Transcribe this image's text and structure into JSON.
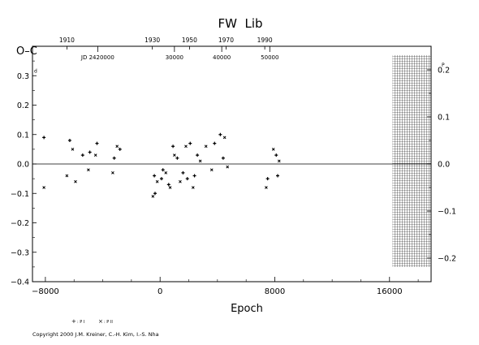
{
  "chart_data": {
    "type": "scatter",
    "title": "FW  Lib",
    "ylabel": "O–C",
    "ylabel_sup": "d",
    "xlabel": "Epoch",
    "xlim": [
      -8900,
      18900
    ],
    "ylim": [
      -0.4,
      0.4
    ],
    "x_ticks": [
      -8000,
      0,
      8000,
      16000
    ],
    "x_tick_labels": [
      "−8000",
      "0",
      "8000",
      "16000"
    ],
    "y_ticks": [
      -0.4,
      -0.3,
      -0.2,
      -0.1,
      0.0,
      0.1,
      0.2,
      0.3
    ],
    "y_tick_labels": [
      "−0.4",
      "−0.3",
      "−0.2",
      "−0.1",
      "0.0",
      "0.1",
      "0.2",
      "0.3"
    ],
    "right_ylim": [
      -0.25,
      0.25
    ],
    "right_y_ticks": [
      -0.2,
      -0.1,
      0.0,
      0.1,
      0.2
    ],
    "right_y_tick_labels": [
      "−0.2",
      "−0.1",
      "0.0",
      "0.1",
      "0.2"
    ],
    "right_ylabel_sup": "P",
    "top_year_ticks": [
      {
        "epoch": -6500,
        "label": "1910"
      },
      {
        "epoch": -540,
        "label": "1930"
      },
      {
        "epoch": 2050,
        "label": "1950"
      },
      {
        "epoch": 4600,
        "label": "1970"
      },
      {
        "epoch": 7300,
        "label": "1990"
      }
    ],
    "top_jd_ticks": [
      {
        "epoch": -4350,
        "label": "JD 2420000"
      },
      {
        "epoch": 1000,
        "label": "30000"
      },
      {
        "epoch": 4300,
        "label": "40000"
      },
      {
        "epoch": 7650,
        "label": "50000"
      }
    ],
    "hatched_region": [
      16200,
      18900
    ],
    "series": [
      {
        "name": "P I",
        "marker": "+",
        "points": [
          [
            -8100,
            0.09
          ],
          [
            -6300,
            0.08
          ],
          [
            -5400,
            0.03
          ],
          [
            -4900,
            0.04
          ],
          [
            -4400,
            0.07
          ],
          [
            -3200,
            0.02
          ],
          [
            -2800,
            0.05
          ],
          [
            -400,
            -0.04
          ],
          [
            -350,
            -0.1
          ],
          [
            100,
            -0.05
          ],
          [
            200,
            -0.02
          ],
          [
            600,
            -0.07
          ],
          [
            900,
            0.06
          ],
          [
            1200,
            0.02
          ],
          [
            1600,
            -0.03
          ],
          [
            1900,
            -0.05
          ],
          [
            2100,
            0.07
          ],
          [
            2400,
            -0.04
          ],
          [
            2600,
            0.03
          ],
          [
            3800,
            0.07
          ],
          [
            4200,
            0.1
          ],
          [
            4400,
            0.02
          ],
          [
            7500,
            -0.05
          ],
          [
            8100,
            0.03
          ],
          [
            8200,
            -0.04
          ]
        ]
      },
      {
        "name": "P II",
        "marker": "×",
        "points": [
          [
            -8100,
            -0.08
          ],
          [
            -6500,
            -0.04
          ],
          [
            -6100,
            0.05
          ],
          [
            -5900,
            -0.06
          ],
          [
            -5000,
            -0.02
          ],
          [
            -4500,
            0.03
          ],
          [
            -3300,
            -0.03
          ],
          [
            -3000,
            0.06
          ],
          [
            -500,
            -0.11
          ],
          [
            -200,
            -0.06
          ],
          [
            400,
            -0.03
          ],
          [
            700,
            -0.08
          ],
          [
            1000,
            0.03
          ],
          [
            1400,
            -0.06
          ],
          [
            1800,
            0.06
          ],
          [
            2300,
            -0.08
          ],
          [
            2800,
            0.01
          ],
          [
            3200,
            0.06
          ],
          [
            3600,
            -0.02
          ],
          [
            4500,
            0.09
          ],
          [
            4700,
            -0.01
          ],
          [
            7400,
            -0.08
          ],
          [
            7900,
            0.05
          ],
          [
            8300,
            0.01
          ]
        ]
      }
    ]
  },
  "legend": {
    "items": [
      {
        "marker": "+",
        "label": ": P I"
      },
      {
        "marker": "×",
        "label": ": P II"
      }
    ]
  },
  "footer": {
    "copyright": "Copyright 2000 J.M. Kreiner, C.-H. Kim, I.-S. Nha"
  }
}
